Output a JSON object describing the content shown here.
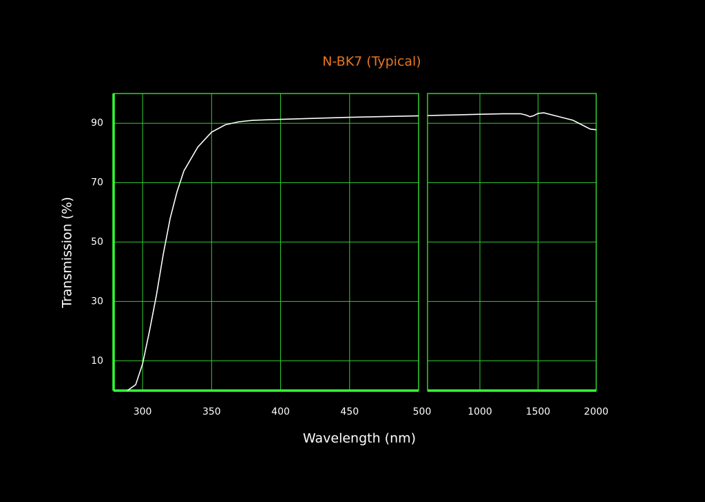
{
  "chart_data": [
    {
      "type": "line",
      "title": "N-BK7 (Typical)",
      "xlabel": "Wavelength (nm)",
      "ylabel": "Transmission (%)",
      "xlim": [
        279,
        500
      ],
      "xticks": [
        300,
        350,
        400,
        450,
        500
      ],
      "ylim": [
        0,
        100
      ],
      "yticks": [
        10,
        30,
        50,
        70,
        90
      ],
      "grid": true,
      "color": "#ffffff",
      "x": [
        289,
        295,
        300,
        305,
        310,
        315,
        320,
        325,
        330,
        340,
        350,
        360,
        370,
        380,
        400,
        450,
        500
      ],
      "values": [
        0,
        2,
        9,
        20,
        32,
        46,
        58,
        67,
        74,
        82,
        87,
        89.5,
        90.5,
        91,
        91.3,
        92,
        92.5
      ]
    },
    {
      "type": "line",
      "xlim": [
        550,
        2000
      ],
      "xticks": [
        1000,
        1500,
        2000
      ],
      "grid": true,
      "color": "#ffffff",
      "x": [
        550,
        800,
        1000,
        1200,
        1350,
        1400,
        1430,
        1460,
        1500,
        1550,
        1650,
        1800,
        1900,
        1950,
        2000
      ],
      "values": [
        92.6,
        92.8,
        93,
        93.2,
        93.2,
        92.7,
        92.2,
        92.5,
        93.3,
        93.5,
        92.5,
        91,
        89,
        88,
        87.8
      ]
    }
  ]
}
